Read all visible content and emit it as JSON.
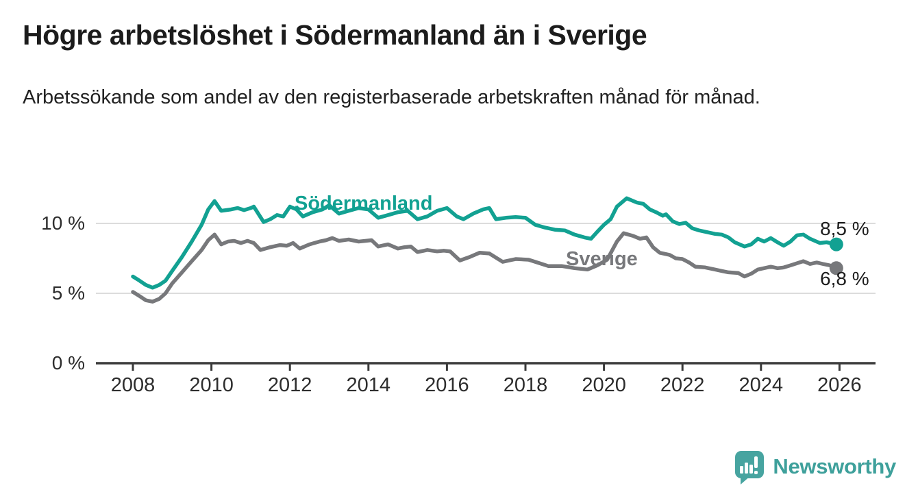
{
  "title": "Högre arbetslöshet i Södermanland än i Sverige",
  "subtitle": "Arbetssökande som andel av den registerbaserade arbetskraften månad för månad.",
  "branding": {
    "logo_text": "Newsworthy"
  },
  "colors": {
    "sodermanland_line": "#12a192",
    "sverige_line": "#77787b",
    "grid": "#dcdcdc",
    "axis": "#3a3a3a",
    "text": "#1c1c1c",
    "logo": "#47a4a0"
  },
  "chart_data": {
    "type": "line",
    "title": "Högre arbetslöshet i Södermanland än i Sverige",
    "subtitle": "Arbetssökande som andel av den registerbaserade arbetskraften månad för månad.",
    "grid": "horizontal",
    "legend_position": "inline",
    "x_axis": {
      "min": 2007.05,
      "max": 2026.9,
      "ticks": [
        2008,
        2010,
        2012,
        2014,
        2016,
        2018,
        2020,
        2022,
        2024,
        2026
      ]
    },
    "y_axis": {
      "min": 0,
      "max": 12.5,
      "unit": "%",
      "ticks": [
        {
          "value": 0,
          "label": "0 %"
        },
        {
          "value": 5,
          "label": "5 %"
        },
        {
          "value": 10,
          "label": "10 %"
        }
      ]
    },
    "series": [
      {
        "name": "Södermanland",
        "color": "#12a192",
        "end_label": "8,5 %",
        "end_value": 8.5,
        "points": [
          [
            2008.0,
            6.2
          ],
          [
            2008.17,
            5.9
          ],
          [
            2008.33,
            5.6
          ],
          [
            2008.5,
            5.4
          ],
          [
            2008.67,
            5.6
          ],
          [
            2008.83,
            5.9
          ],
          [
            2009.0,
            6.6
          ],
          [
            2009.25,
            7.6
          ],
          [
            2009.5,
            8.7
          ],
          [
            2009.75,
            9.9
          ],
          [
            2009.92,
            11.0
          ],
          [
            2010.08,
            11.6
          ],
          [
            2010.25,
            10.9
          ],
          [
            2010.5,
            11.0
          ],
          [
            2010.67,
            11.1
          ],
          [
            2010.83,
            10.95
          ],
          [
            2011.0,
            11.1
          ],
          [
            2011.08,
            11.2
          ],
          [
            2011.33,
            10.1
          ],
          [
            2011.5,
            10.3
          ],
          [
            2011.67,
            10.6
          ],
          [
            2011.83,
            10.5
          ],
          [
            2012.0,
            11.2
          ],
          [
            2012.17,
            11.0
          ],
          [
            2012.33,
            10.5
          ],
          [
            2012.58,
            10.8
          ],
          [
            2012.83,
            11.0
          ],
          [
            2013.0,
            11.3
          ],
          [
            2013.25,
            10.7
          ],
          [
            2013.5,
            10.9
          ],
          [
            2013.75,
            11.1
          ],
          [
            2014.0,
            11.0
          ],
          [
            2014.25,
            10.4
          ],
          [
            2014.5,
            10.6
          ],
          [
            2014.75,
            10.8
          ],
          [
            2015.0,
            10.9
          ],
          [
            2015.25,
            10.3
          ],
          [
            2015.5,
            10.5
          ],
          [
            2015.75,
            10.9
          ],
          [
            2016.0,
            11.1
          ],
          [
            2016.25,
            10.5
          ],
          [
            2016.42,
            10.3
          ],
          [
            2016.67,
            10.7
          ],
          [
            2016.92,
            11.0
          ],
          [
            2017.08,
            11.1
          ],
          [
            2017.25,
            10.3
          ],
          [
            2017.5,
            10.4
          ],
          [
            2017.75,
            10.45
          ],
          [
            2018.0,
            10.4
          ],
          [
            2018.25,
            9.9
          ],
          [
            2018.5,
            9.7
          ],
          [
            2018.75,
            9.55
          ],
          [
            2019.0,
            9.5
          ],
          [
            2019.25,
            9.2
          ],
          [
            2019.5,
            9.0
          ],
          [
            2019.67,
            8.9
          ],
          [
            2019.83,
            9.4
          ],
          [
            2020.0,
            9.9
          ],
          [
            2020.17,
            10.3
          ],
          [
            2020.33,
            11.2
          ],
          [
            2020.58,
            11.8
          ],
          [
            2020.83,
            11.5
          ],
          [
            2021.0,
            11.4
          ],
          [
            2021.17,
            11.0
          ],
          [
            2021.33,
            10.8
          ],
          [
            2021.5,
            10.55
          ],
          [
            2021.58,
            10.65
          ],
          [
            2021.75,
            10.15
          ],
          [
            2021.92,
            9.95
          ],
          [
            2022.08,
            10.05
          ],
          [
            2022.25,
            9.65
          ],
          [
            2022.42,
            9.5
          ],
          [
            2022.58,
            9.4
          ],
          [
            2022.83,
            9.25
          ],
          [
            2023.0,
            9.2
          ],
          [
            2023.17,
            9.0
          ],
          [
            2023.33,
            8.65
          ],
          [
            2023.58,
            8.35
          ],
          [
            2023.75,
            8.5
          ],
          [
            2023.92,
            8.9
          ],
          [
            2024.08,
            8.7
          ],
          [
            2024.25,
            8.95
          ],
          [
            2024.42,
            8.65
          ],
          [
            2024.58,
            8.4
          ],
          [
            2024.75,
            8.7
          ],
          [
            2024.92,
            9.15
          ],
          [
            2025.08,
            9.2
          ],
          [
            2025.25,
            8.9
          ],
          [
            2025.5,
            8.6
          ],
          [
            2025.67,
            8.65
          ],
          [
            2025.92,
            8.5
          ]
        ]
      },
      {
        "name": "Sverige",
        "color": "#77787b",
        "end_label": "6,8 %",
        "end_value": 6.8,
        "points": [
          [
            2008.0,
            5.1
          ],
          [
            2008.17,
            4.8
          ],
          [
            2008.33,
            4.5
          ],
          [
            2008.5,
            4.4
          ],
          [
            2008.67,
            4.6
          ],
          [
            2008.83,
            5.0
          ],
          [
            2009.0,
            5.7
          ],
          [
            2009.25,
            6.5
          ],
          [
            2009.5,
            7.3
          ],
          [
            2009.75,
            8.1
          ],
          [
            2009.92,
            8.8
          ],
          [
            2010.08,
            9.2
          ],
          [
            2010.25,
            8.5
          ],
          [
            2010.42,
            8.7
          ],
          [
            2010.58,
            8.75
          ],
          [
            2010.75,
            8.6
          ],
          [
            2010.92,
            8.75
          ],
          [
            2011.08,
            8.6
          ],
          [
            2011.25,
            8.1
          ],
          [
            2011.5,
            8.3
          ],
          [
            2011.75,
            8.45
          ],
          [
            2011.92,
            8.4
          ],
          [
            2012.08,
            8.6
          ],
          [
            2012.25,
            8.2
          ],
          [
            2012.5,
            8.5
          ],
          [
            2012.75,
            8.7
          ],
          [
            2012.92,
            8.8
          ],
          [
            2013.08,
            8.95
          ],
          [
            2013.25,
            8.75
          ],
          [
            2013.5,
            8.85
          ],
          [
            2013.75,
            8.7
          ],
          [
            2013.92,
            8.75
          ],
          [
            2014.08,
            8.8
          ],
          [
            2014.25,
            8.35
          ],
          [
            2014.5,
            8.5
          ],
          [
            2014.75,
            8.2
          ],
          [
            2014.92,
            8.3
          ],
          [
            2015.08,
            8.35
          ],
          [
            2015.25,
            7.95
          ],
          [
            2015.5,
            8.1
          ],
          [
            2015.75,
            8.0
          ],
          [
            2015.92,
            8.05
          ],
          [
            2016.08,
            8.0
          ],
          [
            2016.33,
            7.35
          ],
          [
            2016.58,
            7.6
          ],
          [
            2016.83,
            7.9
          ],
          [
            2017.08,
            7.85
          ],
          [
            2017.42,
            7.25
          ],
          [
            2017.75,
            7.45
          ],
          [
            2018.08,
            7.4
          ],
          [
            2018.42,
            7.1
          ],
          [
            2018.58,
            6.95
          ],
          [
            2018.92,
            6.95
          ],
          [
            2019.25,
            6.8
          ],
          [
            2019.58,
            6.7
          ],
          [
            2019.83,
            7.0
          ],
          [
            2020.08,
            7.4
          ],
          [
            2020.33,
            8.7
          ],
          [
            2020.5,
            9.3
          ],
          [
            2020.75,
            9.1
          ],
          [
            2020.92,
            8.9
          ],
          [
            2021.08,
            9.0
          ],
          [
            2021.25,
            8.3
          ],
          [
            2021.42,
            7.9
          ],
          [
            2021.67,
            7.75
          ],
          [
            2021.83,
            7.5
          ],
          [
            2022.0,
            7.45
          ],
          [
            2022.17,
            7.2
          ],
          [
            2022.33,
            6.9
          ],
          [
            2022.58,
            6.85
          ],
          [
            2022.83,
            6.7
          ],
          [
            2023.0,
            6.6
          ],
          [
            2023.17,
            6.5
          ],
          [
            2023.42,
            6.45
          ],
          [
            2023.58,
            6.2
          ],
          [
            2023.75,
            6.4
          ],
          [
            2023.92,
            6.7
          ],
          [
            2024.08,
            6.8
          ],
          [
            2024.25,
            6.9
          ],
          [
            2024.42,
            6.8
          ],
          [
            2024.58,
            6.85
          ],
          [
            2024.75,
            7.0
          ],
          [
            2024.92,
            7.15
          ],
          [
            2025.08,
            7.3
          ],
          [
            2025.25,
            7.1
          ],
          [
            2025.42,
            7.2
          ],
          [
            2025.58,
            7.1
          ],
          [
            2025.75,
            7.0
          ],
          [
            2025.92,
            6.8
          ]
        ]
      }
    ]
  }
}
